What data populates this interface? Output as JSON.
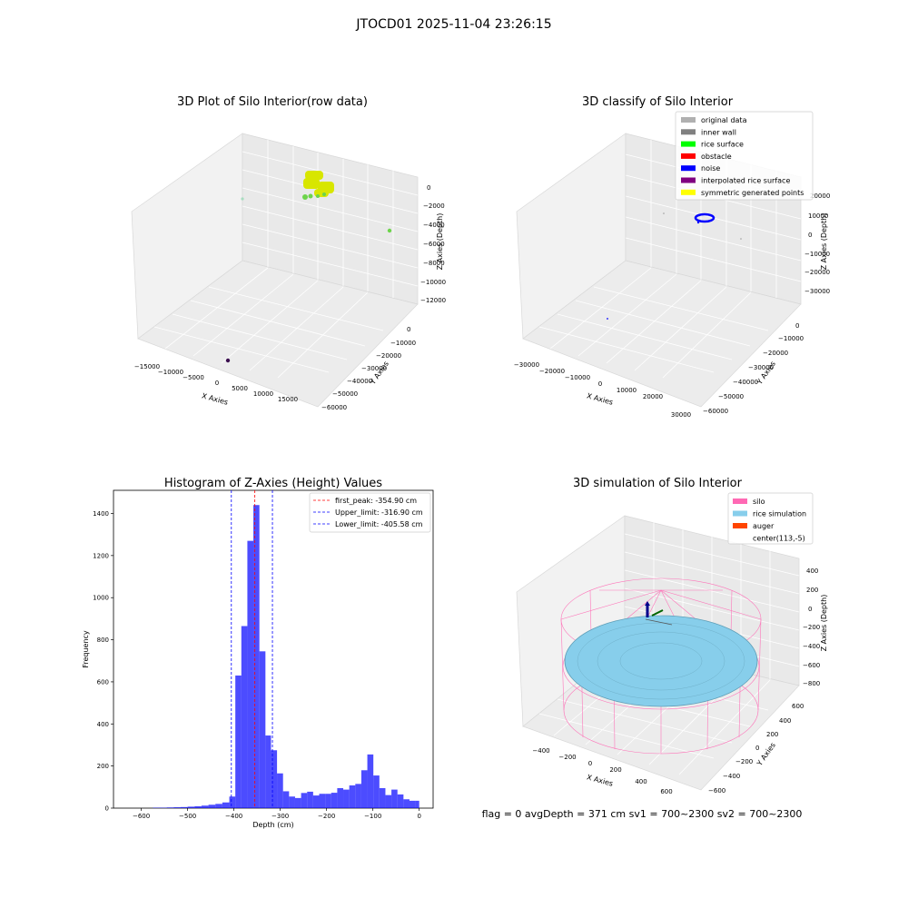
{
  "figure": {
    "suptitle": "JTOCD01 2025-11-04 23:26:15",
    "status_line": "flag = 0     avgDepth = 371 cm  sv1 = 700~2300  sv2 = 700~2300"
  },
  "panels": {
    "raw": {
      "title": "3D Plot of Silo Interior(row data)",
      "xlabel": "X Axies",
      "ylabel": "Y Axies",
      "zlabel": "Z Axies (Depth)",
      "xticks": [
        "−15000",
        "−10000",
        "−5000",
        "0",
        "5000",
        "10000",
        "15000"
      ],
      "yticks": [
        "0",
        "−10000",
        "−20000",
        "−30000",
        "−40000",
        "−50000",
        "−60000"
      ],
      "zticks": [
        "0",
        "−2000",
        "−4000",
        "−6000",
        "−8000",
        "−10000",
        "−12000"
      ]
    },
    "classify": {
      "title": "3D classify of Silo Interior",
      "xlabel": "X Axies",
      "ylabel": "Y Axies",
      "zlabel": "Z Axies (Depth)",
      "xticks": [
        "−30000",
        "−20000",
        "−10000",
        "0",
        "10000",
        "20000",
        "30000"
      ],
      "yticks": [
        "0",
        "−10000",
        "−20000",
        "−30000",
        "−40000",
        "−50000",
        "−60000"
      ],
      "zticks": [
        "20000",
        "10000",
        "0",
        "−10000",
        "−20000",
        "−30000"
      ],
      "legend": [
        {
          "label": "original data",
          "color": "#b0b0b0"
        },
        {
          "label": "inner wall",
          "color": "#808080"
        },
        {
          "label": "rice surface",
          "color": "#00ff00"
        },
        {
          "label": "obstacle",
          "color": "#ff0000"
        },
        {
          "label": "noise",
          "color": "#0000ff"
        },
        {
          "label": "interpolated rice surface",
          "color": "#800080"
        },
        {
          "label": "symmetric generated points",
          "color": "#ffff00"
        }
      ]
    },
    "simulation": {
      "title": "3D simulation of Silo Interior",
      "xlabel": "X Axies",
      "ylabel": "Y Axies",
      "zlabel": "Z Axies (Depth)",
      "xticks": [
        "−400",
        "−200",
        "0",
        "200",
        "400",
        "600"
      ],
      "yticks": [
        "600",
        "400",
        "200",
        "0",
        "−200",
        "−400",
        "−600"
      ],
      "zticks": [
        "400",
        "200",
        "0",
        "−200",
        "−400",
        "−600",
        "−800"
      ],
      "legend": [
        {
          "label": "silo",
          "color": "#ff69b4"
        },
        {
          "label": "rice simulation",
          "color": "#87ceeb"
        },
        {
          "label": "auger",
          "color": "#ff4500"
        },
        {
          "label": "center(113,-5)",
          "color": ""
        }
      ]
    }
  },
  "chart_data": {
    "type": "bar",
    "title": "Histogram of Z-Axies (Height) Values",
    "xlabel": "Depth (cm)",
    "ylabel": "Frequency",
    "xlim": [
      -660,
      30
    ],
    "ylim": [
      0,
      1510
    ],
    "xticks": [
      -600,
      -500,
      -400,
      -300,
      -200,
      -100,
      0
    ],
    "yticks": [
      0,
      200,
      400,
      600,
      800,
      1000,
      1200,
      1400
    ],
    "bar_color": "#0000ff",
    "bins": [
      {
        "x0": -575,
        "x1": -560,
        "v": 2
      },
      {
        "x0": -560,
        "x1": -545,
        "v": 2
      },
      {
        "x0": -545,
        "x1": -530,
        "v": 3
      },
      {
        "x0": -530,
        "x1": -515,
        "v": 4
      },
      {
        "x0": -515,
        "x1": -500,
        "v": 5
      },
      {
        "x0": -500,
        "x1": -485,
        "v": 7
      },
      {
        "x0": -485,
        "x1": -470,
        "v": 9
      },
      {
        "x0": -470,
        "x1": -455,
        "v": 12
      },
      {
        "x0": -455,
        "x1": -440,
        "v": 16
      },
      {
        "x0": -440,
        "x1": -425,
        "v": 20
      },
      {
        "x0": -425,
        "x1": -410,
        "v": 27
      },
      {
        "x0": -410,
        "x1": -397,
        "v": 55
      },
      {
        "x0": -397,
        "x1": -384,
        "v": 630
      },
      {
        "x0": -384,
        "x1": -371,
        "v": 865
      },
      {
        "x0": -371,
        "x1": -358,
        "v": 1270
      },
      {
        "x0": -358,
        "x1": -345,
        "v": 1440
      },
      {
        "x0": -345,
        "x1": -332,
        "v": 745
      },
      {
        "x0": -332,
        "x1": -320,
        "v": 345
      },
      {
        "x0": -320,
        "x1": -307,
        "v": 275
      },
      {
        "x0": -307,
        "x1": -294,
        "v": 165
      },
      {
        "x0": -294,
        "x1": -281,
        "v": 80
      },
      {
        "x0": -281,
        "x1": -268,
        "v": 55
      },
      {
        "x0": -268,
        "x1": -255,
        "v": 48
      },
      {
        "x0": -255,
        "x1": -242,
        "v": 72
      },
      {
        "x0": -242,
        "x1": -229,
        "v": 78
      },
      {
        "x0": -229,
        "x1": -216,
        "v": 60
      },
      {
        "x0": -216,
        "x1": -203,
        "v": 68
      },
      {
        "x0": -203,
        "x1": -190,
        "v": 68
      },
      {
        "x0": -190,
        "x1": -177,
        "v": 73
      },
      {
        "x0": -177,
        "x1": -164,
        "v": 95
      },
      {
        "x0": -164,
        "x1": -151,
        "v": 88
      },
      {
        "x0": -151,
        "x1": -138,
        "v": 108
      },
      {
        "x0": -138,
        "x1": -125,
        "v": 115
      },
      {
        "x0": -125,
        "x1": -112,
        "v": 180
      },
      {
        "x0": -112,
        "x1": -99,
        "v": 255
      },
      {
        "x0": -99,
        "x1": -86,
        "v": 155
      },
      {
        "x0": -86,
        "x1": -73,
        "v": 95
      },
      {
        "x0": -73,
        "x1": -60,
        "v": 62
      },
      {
        "x0": -60,
        "x1": -47,
        "v": 88
      },
      {
        "x0": -47,
        "x1": -34,
        "v": 65
      },
      {
        "x0": -34,
        "x1": -21,
        "v": 42
      },
      {
        "x0": -21,
        "x1": -8,
        "v": 35
      },
      {
        "x0": -8,
        "x1": 0,
        "v": 35
      }
    ],
    "vlines": [
      {
        "label": "first_peak: -354.90 cm",
        "x": -354.9,
        "color": "#ff0000"
      },
      {
        "label": "Upper_limit: -316.90 cm",
        "x": -316.9,
        "color": "#0000ff"
      },
      {
        "label": "Lower_limit: -405.58 cm",
        "x": -405.58,
        "color": "#0000ff"
      }
    ],
    "legend_position": "top-right"
  }
}
